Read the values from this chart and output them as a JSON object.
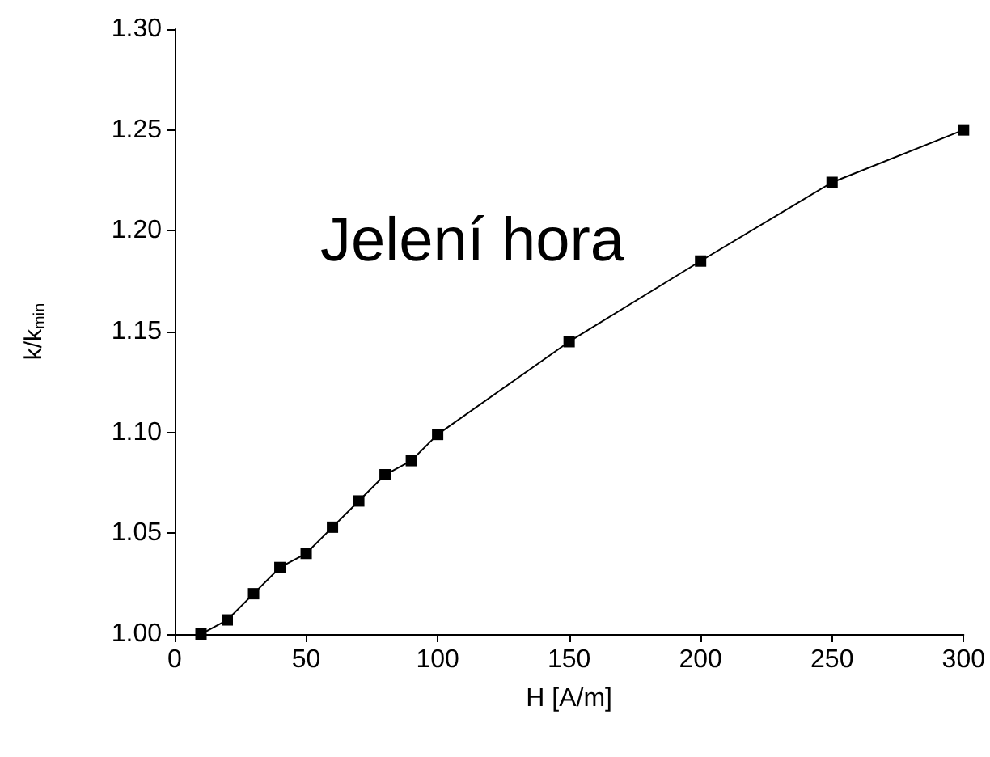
{
  "chart_data": {
    "type": "line",
    "xlabel": "H [A/m]",
    "ylabel": "k/k$_{min}$",
    "annotations": [
      "Jelení hora"
    ],
    "x": [
      10,
      20,
      30,
      40,
      50,
      60,
      70,
      80,
      90,
      100,
      150,
      200,
      250,
      300
    ],
    "series": [
      {
        "color": "#000000",
        "values": [
          1.0,
          1.007,
          1.02,
          1.033,
          1.04,
          1.053,
          1.066,
          1.079,
          1.086,
          1.099,
          1.145,
          1.185,
          1.224,
          1.25
        ]
      }
    ],
    "xlim": [
      0,
      300
    ],
    "xticks": [
      0,
      50,
      100,
      150,
      200,
      250,
      300
    ],
    "ylim": [
      1.0,
      1.3
    ],
    "yticks": [
      {
        "value": 1.0,
        "label": "1.00"
      },
      {
        "value": 1.05,
        "label": "1.05"
      },
      {
        "value": 1.1,
        "label": "1.10"
      },
      {
        "value": 1.15,
        "label": "1.15"
      },
      {
        "value": 1.2,
        "label": "1.20"
      },
      {
        "value": 1.25,
        "label": "1.25"
      },
      {
        "value": 1.3,
        "label": "1.30"
      }
    ],
    "grid": false,
    "marker": "square",
    "line_style": "solid"
  }
}
